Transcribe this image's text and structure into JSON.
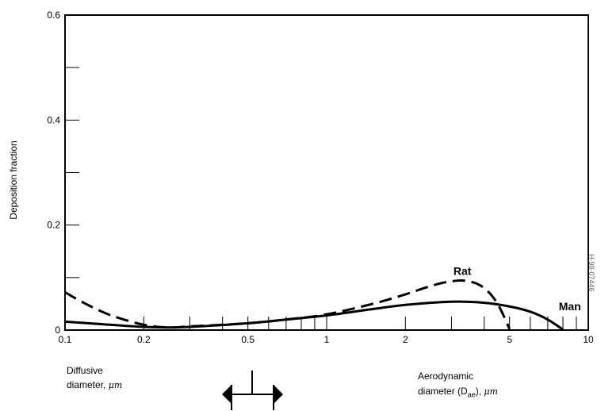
{
  "chart_data": {
    "type": "line",
    "title": "",
    "xlabel": "",
    "ylabel": "Deposition fraction",
    "xscale": "log",
    "xlim": [
      0.1,
      10
    ],
    "ylim": [
      0,
      0.6
    ],
    "x_tick_labels": [
      "0.1",
      "0.2",
      "0.5",
      "1",
      "2",
      "5",
      "10"
    ],
    "y_tick_labels": [
      "0",
      "0.2",
      "0.4",
      "0.6"
    ],
    "grid": false,
    "legend": "none",
    "series": [
      {
        "name": "Rat",
        "style": "dashed",
        "color": "#000000",
        "x": [
          0.1,
          0.12,
          0.15,
          0.2,
          0.25,
          0.3,
          0.5,
          0.7,
          1.0,
          1.5,
          2.0,
          2.5,
          3.0,
          3.5,
          4.0,
          4.5,
          5.0
        ],
        "y": [
          0.072,
          0.05,
          0.028,
          0.01,
          0.005,
          0.007,
          0.013,
          0.02,
          0.03,
          0.05,
          0.068,
          0.084,
          0.093,
          0.093,
          0.08,
          0.05,
          0.002
        ]
      },
      {
        "name": "Man",
        "style": "solid",
        "color": "#000000",
        "x": [
          0.1,
          0.15,
          0.2,
          0.25,
          0.3,
          0.5,
          0.7,
          1.0,
          1.5,
          2.0,
          3.0,
          4.0,
          5.0,
          6.0,
          7.0,
          8.0
        ],
        "y": [
          0.016,
          0.01,
          0.006,
          0.005,
          0.006,
          0.013,
          0.02,
          0.028,
          0.04,
          0.048,
          0.054,
          0.052,
          0.045,
          0.035,
          0.02,
          0.001
        ]
      }
    ],
    "series_labels": [
      {
        "text": "Rat",
        "x": 3.3,
        "y": 0.105
      },
      {
        "text": "Man",
        "x": 8.5,
        "y": 0.038
      }
    ]
  },
  "annotations": {
    "diffusive_line1": "Diffusive",
    "diffusive_line2": "diameter,",
    "diffusive_unit": "μm",
    "aero_line1": "Aerodynamic",
    "aero_line2a": "diameter (D",
    "aero_sub": "ae",
    "aero_line2b": "),",
    "aero_unit": "μm",
    "arrow_icon": "double-headed-arrow",
    "side_code": "H-98-07446"
  }
}
